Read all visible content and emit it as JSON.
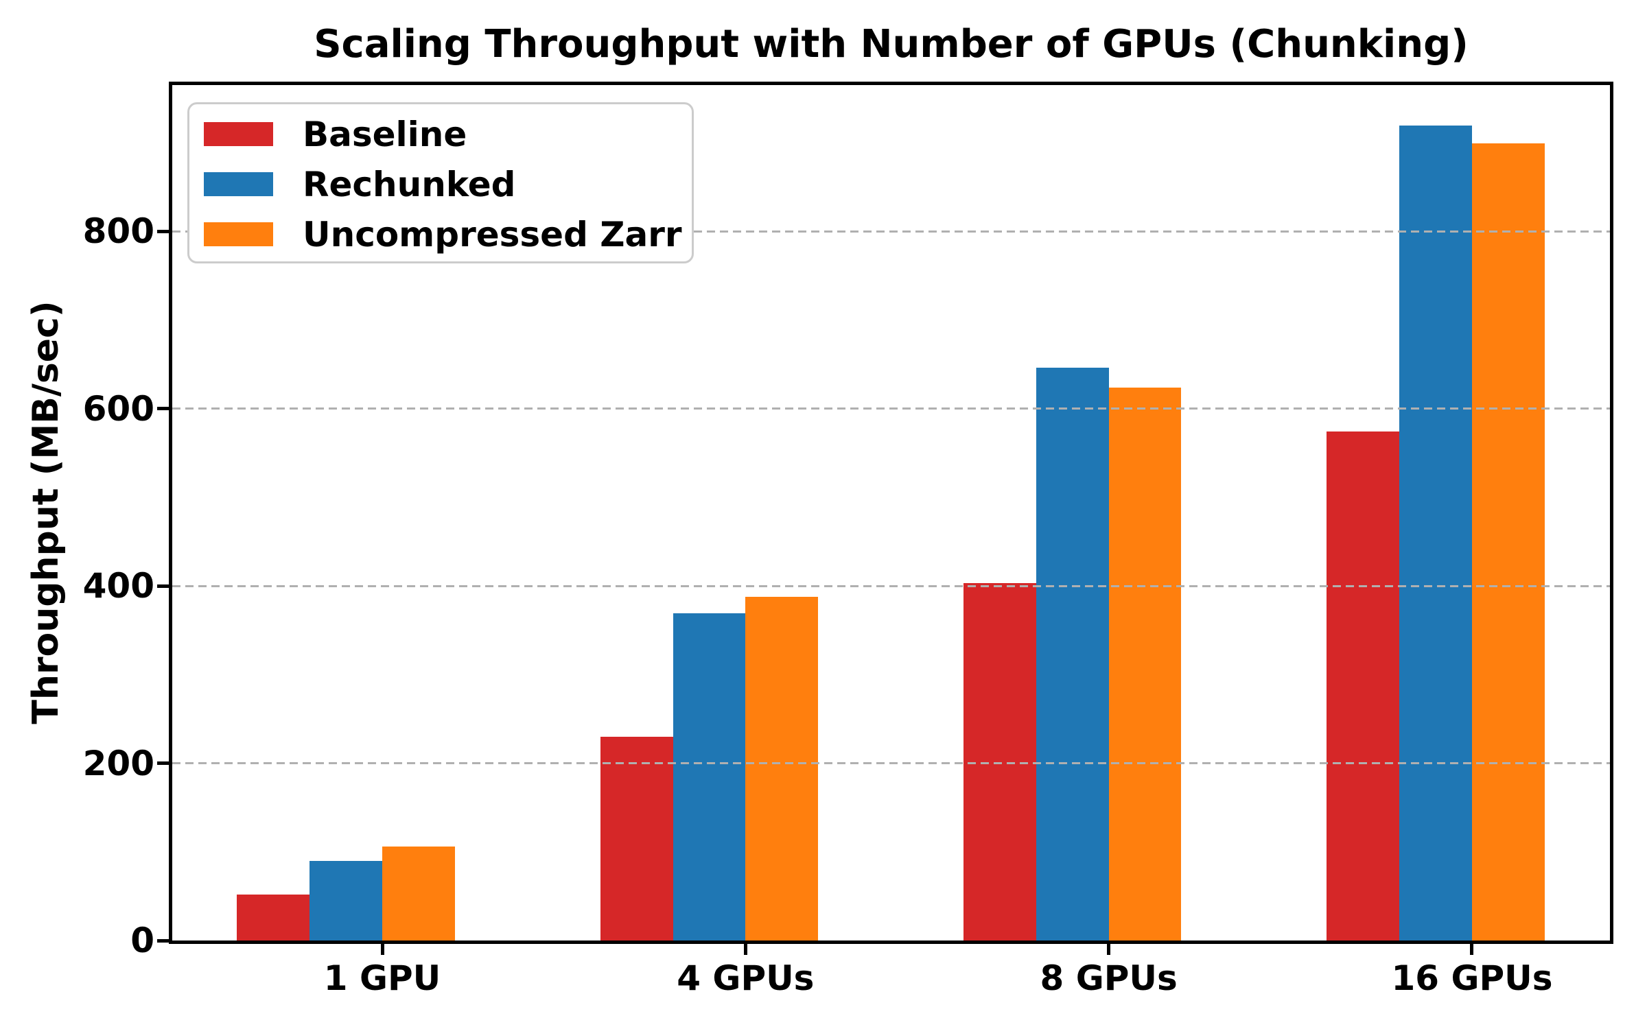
{
  "title": "Scaling Throughput with Number of GPUs (Chunking)",
  "chart_data": {
    "type": "bar",
    "title": "Scaling Throughput with Number of GPUs (Chunking)",
    "xlabel": "",
    "ylabel": "Throughput (MB/sec)",
    "categories": [
      "1 GPU",
      "4 GPUs",
      "8 GPUs",
      "16 GPUs"
    ],
    "series": [
      {
        "name": "Baseline",
        "color": "#d62728",
        "values": [
          52,
          230,
          403,
          574
        ]
      },
      {
        "name": "Rechunked",
        "color": "#1f77b4",
        "values": [
          90,
          369,
          646,
          919
        ]
      },
      {
        "name": "Uncompressed Zarr",
        "color": "#ff7f0e",
        "values": [
          106,
          388,
          624,
          899
        ]
      }
    ],
    "ylim": [
      0,
      965
    ],
    "yticks": [
      0,
      200,
      400,
      600,
      800
    ],
    "ytick_labels": [
      "0",
      "200",
      "400",
      "600",
      "800"
    ],
    "grid": "horizontal-dashed",
    "grid_color": "#b0b0b0",
    "legend_position": "upper-left",
    "frame_color": "#000000",
    "background_color": "#ffffff"
  }
}
